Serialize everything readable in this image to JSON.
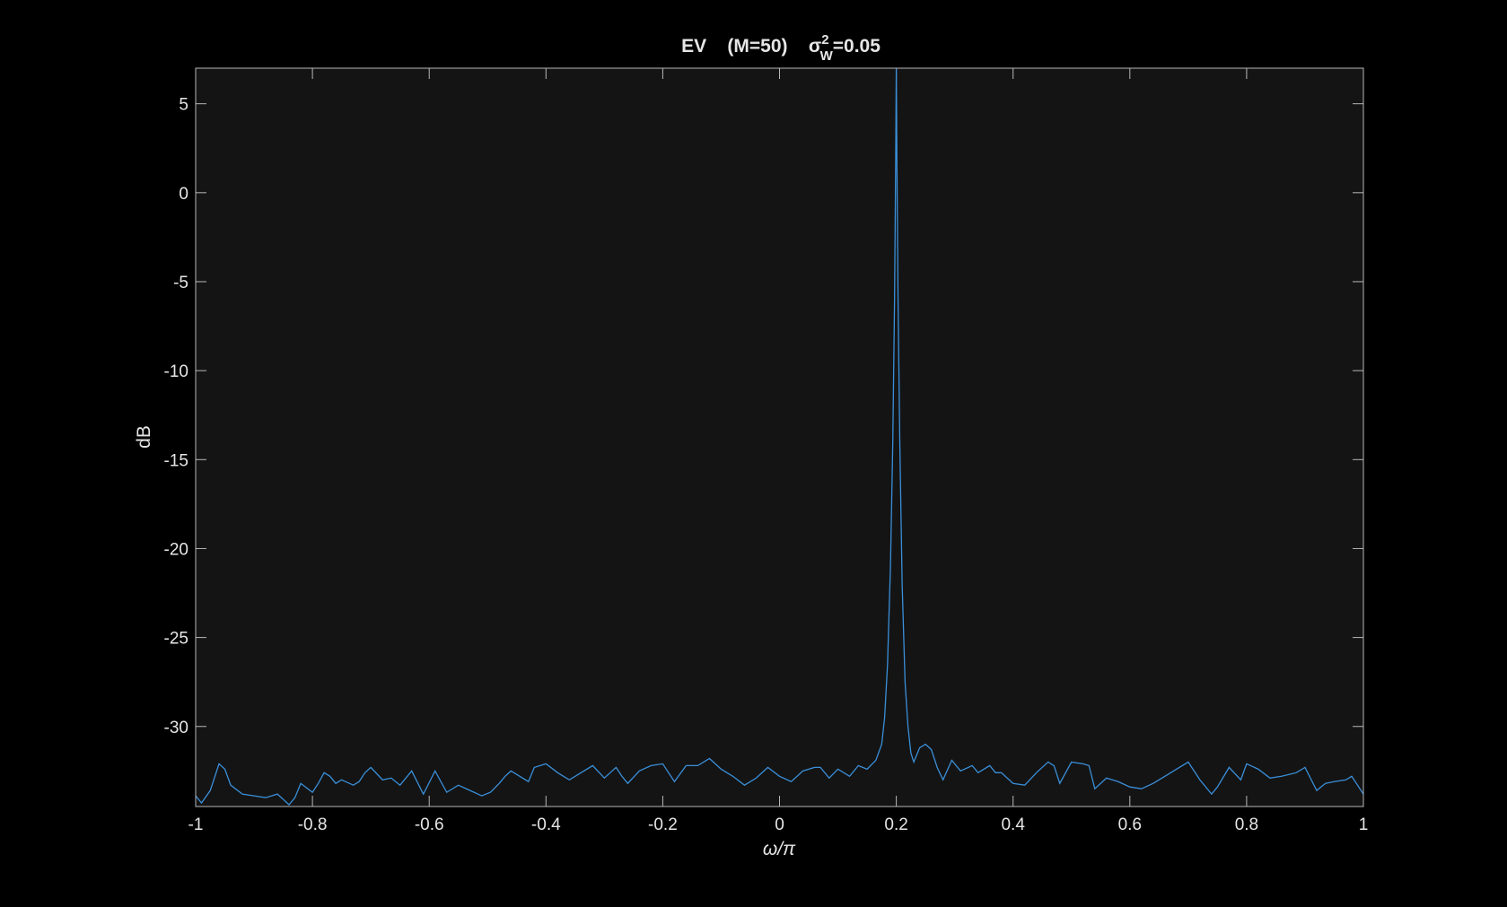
{
  "chart_data": {
    "type": "line",
    "title": {
      "main": "EV    (M=50)    ",
      "sigma": "σ",
      "sup": "2",
      "sub": "W",
      "tail": "=0.05"
    },
    "xlabel": "ω/π",
    "ylabel": "dB",
    "xlim": [
      -1,
      1
    ],
    "ylim": [
      -34.5,
      7
    ],
    "xticks": [
      -1,
      -0.8,
      -0.6,
      -0.4,
      -0.2,
      0,
      0.2,
      0.4,
      0.6,
      0.8,
      1
    ],
    "xtick_labels": [
      "-1",
      "-0.8",
      "-0.6",
      "-0.4",
      "-0.2",
      "0",
      "0.2",
      "0.4",
      "0.6",
      "0.8",
      "1"
    ],
    "yticks": [
      5,
      0,
      -5,
      -10,
      -15,
      -20,
      -25,
      -30
    ],
    "ytick_labels": [
      "5",
      "0",
      "-5",
      "-10",
      "-15",
      "-20",
      "-25",
      "-30"
    ],
    "grid": false,
    "colors": {
      "figure_bg": "#000000",
      "axes_bg": "#141414",
      "axes_line": "#b8b8b8",
      "text": "#e6e6e6",
      "series": "#3a8fd9"
    },
    "series": [
      {
        "x": [
          -1,
          -0.99,
          -0.975,
          -0.96,
          -0.95,
          -0.94,
          -0.92,
          -0.9,
          -0.88,
          -0.86,
          -0.85,
          -0.84,
          -0.83,
          -0.82,
          -0.8,
          -0.79,
          -0.78,
          -0.77,
          -0.76,
          -0.75,
          -0.73,
          -0.72,
          -0.71,
          -0.7,
          -0.68,
          -0.665,
          -0.65,
          -0.63,
          -0.61,
          -0.59,
          -0.57,
          -0.55,
          -0.53,
          -0.51,
          -0.495,
          -0.48,
          -0.47,
          -0.46,
          -0.45,
          -0.43,
          -0.42,
          -0.4,
          -0.38,
          -0.36,
          -0.34,
          -0.32,
          -0.3,
          -0.29,
          -0.28,
          -0.27,
          -0.26,
          -0.24,
          -0.22,
          -0.2,
          -0.18,
          -0.16,
          -0.14,
          -0.12,
          -0.1,
          -0.08,
          -0.06,
          -0.04,
          -0.02,
          0,
          0.02,
          0.04,
          0.06,
          0.07,
          0.085,
          0.1,
          0.12,
          0.135,
          0.15,
          0.165,
          0.175,
          0.18,
          0.185,
          0.19,
          0.194,
          0.197,
          0.199,
          0.2,
          0.201,
          0.203,
          0.206,
          0.21,
          0.215,
          0.22,
          0.225,
          0.23,
          0.24,
          0.25,
          0.26,
          0.27,
          0.28,
          0.295,
          0.31,
          0.33,
          0.34,
          0.36,
          0.37,
          0.38,
          0.4,
          0.42,
          0.44,
          0.46,
          0.47,
          0.48,
          0.5,
          0.52,
          0.53,
          0.54,
          0.56,
          0.58,
          0.6,
          0.62,
          0.64,
          0.66,
          0.68,
          0.7,
          0.72,
          0.74,
          0.75,
          0.77,
          0.79,
          0.8,
          0.82,
          0.84,
          0.86,
          0.885,
          0.9,
          0.92,
          0.935,
          0.95,
          0.97,
          0.98,
          0.99,
          1
        ],
        "y": [
          -33.9,
          -34.3,
          -33.6,
          -32.1,
          -32.4,
          -33.3,
          -33.8,
          -33.9,
          -34.0,
          -33.8,
          -34.1,
          -34.4,
          -34.0,
          -33.2,
          -33.7,
          -33.2,
          -32.6,
          -32.8,
          -33.2,
          -33.0,
          -33.3,
          -33.1,
          -32.6,
          -32.3,
          -33.0,
          -32.9,
          -33.3,
          -32.5,
          -33.8,
          -32.5,
          -33.7,
          -33.3,
          -33.6,
          -33.9,
          -33.7,
          -33.2,
          -32.8,
          -32.5,
          -32.7,
          -33.1,
          -32.3,
          -32.1,
          -32.6,
          -33.0,
          -32.6,
          -32.2,
          -32.9,
          -32.6,
          -32.3,
          -32.8,
          -33.2,
          -32.5,
          -32.2,
          -32.1,
          -33.1,
          -32.2,
          -32.2,
          -31.8,
          -32.4,
          -32.8,
          -33.3,
          -32.9,
          -32.3,
          -32.8,
          -33.1,
          -32.5,
          -32.3,
          -32.3,
          -32.9,
          -32.4,
          -32.8,
          -32.2,
          -32.4,
          -31.9,
          -31.0,
          -29.5,
          -26.5,
          -21.0,
          -14.0,
          -6.0,
          2.0,
          7.0,
          2.0,
          -6.0,
          -14.0,
          -22.0,
          -27.5,
          -30.0,
          -31.5,
          -32.0,
          -31.2,
          -31.0,
          -31.3,
          -32.3,
          -33.0,
          -31.9,
          -32.5,
          -32.2,
          -32.6,
          -32.2,
          -32.6,
          -32.6,
          -33.2,
          -33.3,
          -32.6,
          -32.0,
          -32.2,
          -33.2,
          -32.0,
          -32.1,
          -32.2,
          -33.5,
          -32.9,
          -33.1,
          -33.4,
          -33.5,
          -33.2,
          -32.8,
          -32.4,
          -32.0,
          -33.0,
          -33.8,
          -33.4,
          -32.3,
          -33.0,
          -32.1,
          -32.4,
          -32.9,
          -32.8,
          -32.6,
          -32.3,
          -33.6,
          -33.2,
          -33.1,
          -33.0,
          -32.8,
          -33.3,
          -33.8
        ]
      }
    ]
  }
}
